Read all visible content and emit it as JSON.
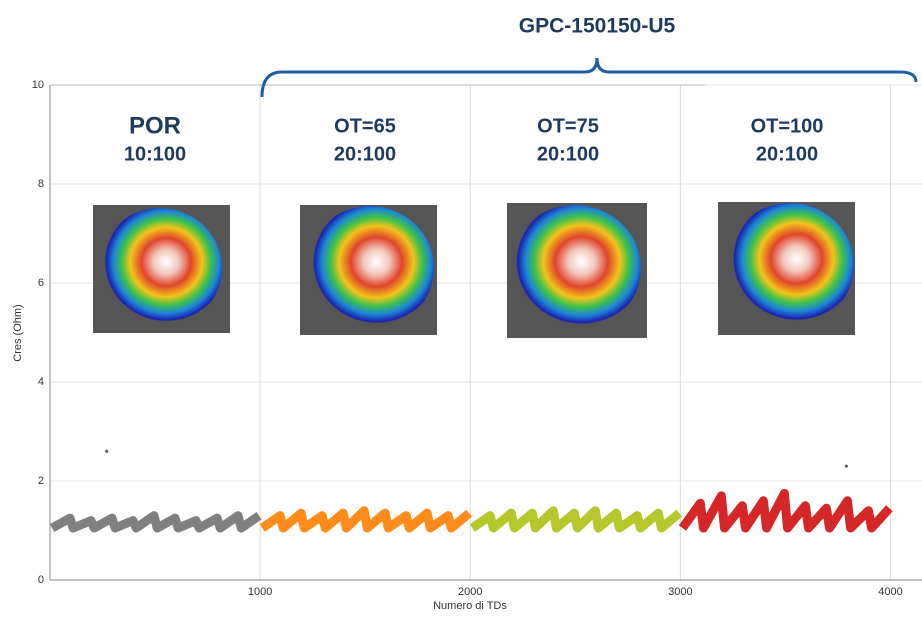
{
  "chart_data": {
    "type": "line",
    "title": "GPC-150150-U5",
    "xlabel": "Numero di TDs",
    "ylabel": "Cres (Ohm)",
    "xlim": [
      0,
      4150
    ],
    "ylim": [
      0,
      10
    ],
    "xticks": [
      1000,
      2000,
      3000,
      4000
    ],
    "yticks": [
      0,
      2,
      4,
      6,
      8,
      10
    ],
    "grid": true,
    "annotations": [
      [
        "POR",
        "10:100"
      ],
      [
        "OT=65",
        "20:100"
      ],
      [
        "OT=75",
        "20:100"
      ],
      [
        "OT=100",
        "20:100"
      ]
    ],
    "series": [
      {
        "color": "#808080",
        "x": [
          10,
          95,
          110,
          195,
          210,
          295,
          310,
          395,
          410,
          495,
          510,
          595,
          610,
          695,
          710,
          795,
          810,
          895,
          910,
          995
        ],
        "values": [
          1.05,
          1.25,
          1.05,
          1.2,
          1.05,
          1.25,
          1.05,
          1.2,
          1.05,
          1.3,
          1.05,
          1.25,
          1.05,
          1.2,
          1.05,
          1.25,
          1.05,
          1.3,
          1.05,
          1.3
        ]
      },
      {
        "color": "#ff8c1a",
        "x": [
          1010,
          1095,
          1110,
          1195,
          1210,
          1295,
          1310,
          1395,
          1410,
          1495,
          1510,
          1595,
          1610,
          1695,
          1710,
          1795,
          1810,
          1895,
          1910,
          1995
        ],
        "values": [
          1.05,
          1.3,
          1.05,
          1.35,
          1.05,
          1.3,
          1.05,
          1.35,
          1.05,
          1.4,
          1.05,
          1.35,
          1.05,
          1.3,
          1.05,
          1.35,
          1.05,
          1.3,
          1.05,
          1.35
        ]
      },
      {
        "color": "#b5c72a",
        "x": [
          2010,
          2095,
          2110,
          2195,
          2210,
          2295,
          2310,
          2395,
          2410,
          2495,
          2510,
          2595,
          2610,
          2695,
          2710,
          2795,
          2810,
          2895,
          2910,
          2995
        ],
        "values": [
          1.05,
          1.3,
          1.05,
          1.35,
          1.05,
          1.35,
          1.05,
          1.4,
          1.05,
          1.35,
          1.05,
          1.4,
          1.05,
          1.35,
          1.05,
          1.3,
          1.05,
          1.35,
          1.05,
          1.35
        ]
      },
      {
        "color": "#d62728",
        "x": [
          3010,
          3095,
          3110,
          3195,
          3210,
          3295,
          3310,
          3395,
          3410,
          3495,
          3510,
          3595,
          3610,
          3695,
          3710,
          3795,
          3810,
          3895,
          3910,
          3995
        ],
        "values": [
          1.05,
          1.55,
          1.05,
          1.7,
          1.05,
          1.5,
          1.05,
          1.6,
          1.05,
          1.75,
          1.05,
          1.5,
          1.05,
          1.45,
          1.05,
          1.6,
          1.05,
          1.4,
          1.05,
          1.45
        ]
      }
    ],
    "points": {
      "x": [
        270,
        3790
      ],
      "values": [
        2.6,
        2.3
      ]
    }
  }
}
